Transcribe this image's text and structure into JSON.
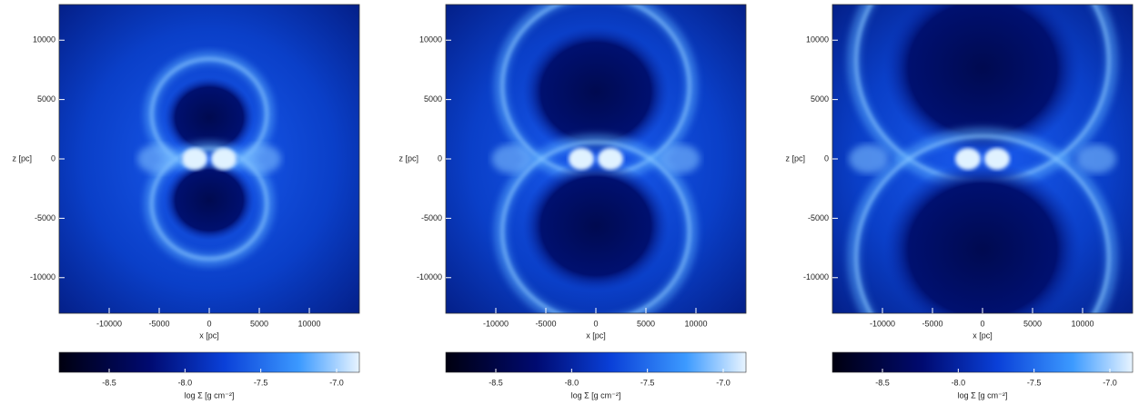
{
  "chart_data": [
    {
      "type": "image",
      "xlabel": "x [pc]",
      "ylabel": "z [pc]",
      "xlim": [
        -15000,
        15000
      ],
      "ylim": [
        -13000,
        13000
      ],
      "xticks": [
        -10000,
        -5000,
        0,
        5000,
        10000
      ],
      "yticks": [
        -10000,
        -5000,
        0,
        5000,
        10000
      ],
      "colorbar": {
        "label": "log Σ [g cm⁻²]",
        "lim": [
          -8.83,
          -6.85
        ],
        "ticks": [
          -8.5,
          {
            "value": -8,
            "label": "-8.0"
          },
          -7.5,
          {
            "value": -7,
            "label": "-7.0"
          }
        ]
      }
    },
    {
      "type": "image",
      "xlabel": "x [pc]",
      "ylabel": "z [pc]",
      "xlim": [
        -15000,
        15000
      ],
      "ylim": [
        -13000,
        13000
      ],
      "xticks": [
        -10000,
        -5000,
        0,
        5000,
        10000
      ],
      "yticks": [
        -10000,
        -5000,
        0,
        5000,
        10000
      ],
      "colorbar": {
        "label": "log Σ [g cm⁻²]",
        "lim": [
          -8.83,
          -6.85
        ],
        "ticks": [
          -8.5,
          {
            "value": -8,
            "label": "-8.0"
          },
          -7.5,
          {
            "value": -7,
            "label": "-7.0"
          }
        ]
      }
    },
    {
      "type": "image",
      "xlabel": "x [pc]",
      "ylabel": "z [pc]",
      "xlim": [
        -15000,
        15000
      ],
      "ylim": [
        -13000,
        13000
      ],
      "xticks": [
        -10000,
        -5000,
        0,
        5000,
        10000
      ],
      "yticks": [
        -10000,
        -5000,
        0,
        5000,
        10000
      ],
      "colorbar": {
        "label": "log Σ [g cm⁻²]",
        "lim": [
          -8.83,
          -6.85
        ],
        "ticks": [
          -8.5,
          {
            "value": -8,
            "label": "-8.0"
          },
          -7.5,
          {
            "value": -7,
            "label": "-7.0"
          }
        ]
      }
    }
  ]
}
